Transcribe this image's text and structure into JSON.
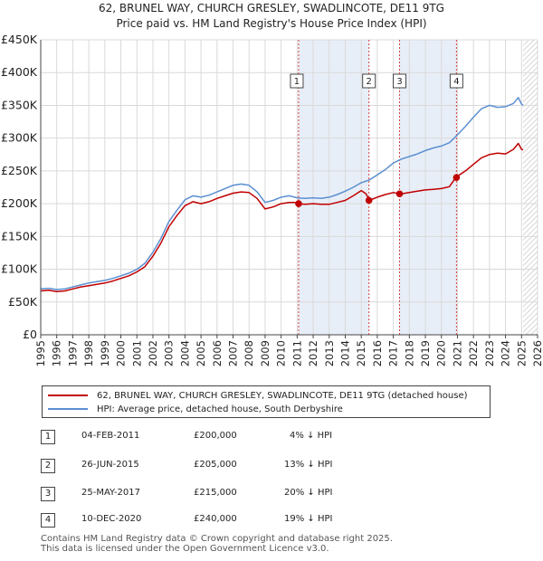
{
  "title_line1": "62, BRUNEL WAY, CHURCH GRESLEY, SWADLINCOTE, DE11 9TG",
  "title_line2": "Price paid vs. HM Land Registry's House Price Index (HPI)",
  "chart_data": {
    "type": "line",
    "x_range": [
      1995,
      2026
    ],
    "ylim": [
      0,
      450000
    ],
    "y_ticks": [
      {
        "value": 0,
        "label": "£0"
      },
      {
        "value": 50000,
        "label": "£50K"
      },
      {
        "value": 100000,
        "label": "£100K"
      },
      {
        "value": 150000,
        "label": "£150K"
      },
      {
        "value": 200000,
        "label": "£200K"
      },
      {
        "value": 250000,
        "label": "£250K"
      },
      {
        "value": 300000,
        "label": "£300K"
      },
      {
        "value": 350000,
        "label": "£350K"
      },
      {
        "value": 400000,
        "label": "£400K"
      },
      {
        "value": 450000,
        "label": "£450K"
      }
    ],
    "x_ticks": [
      "1995",
      "1996",
      "1997",
      "1998",
      "1999",
      "2000",
      "2001",
      "2002",
      "2003",
      "2004",
      "2005",
      "2006",
      "2007",
      "2008",
      "2009",
      "2010",
      "2011",
      "2012",
      "2013",
      "2014",
      "2015",
      "2016",
      "2017",
      "2018",
      "2019",
      "2020",
      "2021",
      "2022",
      "2023",
      "2024",
      "2025",
      "2026"
    ],
    "grid": true,
    "data_end": 2025.1,
    "series": [
      {
        "name": "62, BRUNEL WAY, CHURCH GRESLEY, SWADLINCOTE, DE11 9TG (detached house)",
        "color": "#c00000",
        "points": [
          [
            1995.0,
            67000
          ],
          [
            1995.5,
            68000
          ],
          [
            1996.0,
            66000
          ],
          [
            1996.5,
            67000
          ],
          [
            1997.0,
            70000
          ],
          [
            1997.5,
            73000
          ],
          [
            1998.0,
            75000
          ],
          [
            1998.5,
            77000
          ],
          [
            1999.0,
            79000
          ],
          [
            1999.5,
            82000
          ],
          [
            2000.0,
            86000
          ],
          [
            2000.5,
            90000
          ],
          [
            2001.0,
            96000
          ],
          [
            2001.5,
            104000
          ],
          [
            2002.0,
            120000
          ],
          [
            2002.5,
            140000
          ],
          [
            2003.0,
            165000
          ],
          [
            2003.5,
            182000
          ],
          [
            2004.0,
            197000
          ],
          [
            2004.5,
            203000
          ],
          [
            2005.0,
            200000
          ],
          [
            2005.5,
            203000
          ],
          [
            2006.0,
            208000
          ],
          [
            2006.5,
            212000
          ],
          [
            2007.0,
            216000
          ],
          [
            2007.5,
            218000
          ],
          [
            2008.0,
            217000
          ],
          [
            2008.5,
            208000
          ],
          [
            2009.0,
            192000
          ],
          [
            2009.5,
            195000
          ],
          [
            2010.0,
            200000
          ],
          [
            2010.5,
            202000
          ],
          [
            2011.0,
            202000
          ],
          [
            2011.1,
            200000
          ],
          [
            2011.5,
            199000
          ],
          [
            2012.0,
            200000
          ],
          [
            2012.5,
            199000
          ],
          [
            2013.0,
            199000
          ],
          [
            2013.5,
            202000
          ],
          [
            2014.0,
            205000
          ],
          [
            2014.5,
            212000
          ],
          [
            2015.0,
            220000
          ],
          [
            2015.3,
            215000
          ],
          [
            2015.5,
            205000
          ],
          [
            2016.0,
            210000
          ],
          [
            2016.5,
            214000
          ],
          [
            2017.0,
            217000
          ],
          [
            2017.4,
            215000
          ],
          [
            2017.5,
            215000
          ],
          [
            2018.0,
            217000
          ],
          [
            2018.5,
            219000
          ],
          [
            2019.0,
            221000
          ],
          [
            2019.5,
            222000
          ],
          [
            2020.0,
            223000
          ],
          [
            2020.5,
            226000
          ],
          [
            2020.9,
            240000
          ],
          [
            2021.0,
            242000
          ],
          [
            2021.5,
            250000
          ],
          [
            2022.0,
            260000
          ],
          [
            2022.5,
            270000
          ],
          [
            2023.0,
            275000
          ],
          [
            2023.5,
            277000
          ],
          [
            2024.0,
            276000
          ],
          [
            2024.5,
            283000
          ],
          [
            2024.8,
            292000
          ],
          [
            2025.0,
            283000
          ],
          [
            2025.1,
            282000
          ]
        ]
      },
      {
        "name": "HPI: Average price, detached house, South Derbyshire",
        "color": "#5b8fd1",
        "points": [
          [
            1995.0,
            70000
          ],
          [
            1995.5,
            71000
          ],
          [
            1996.0,
            69000
          ],
          [
            1996.5,
            70000
          ],
          [
            1997.0,
            73000
          ],
          [
            1997.5,
            76000
          ],
          [
            1998.0,
            79000
          ],
          [
            1998.5,
            81000
          ],
          [
            1999.0,
            83000
          ],
          [
            1999.5,
            86000
          ],
          [
            2000.0,
            90000
          ],
          [
            2000.5,
            94000
          ],
          [
            2001.0,
            100000
          ],
          [
            2001.5,
            109000
          ],
          [
            2002.0,
            126000
          ],
          [
            2002.5,
            147000
          ],
          [
            2003.0,
            173000
          ],
          [
            2003.5,
            190000
          ],
          [
            2004.0,
            206000
          ],
          [
            2004.5,
            212000
          ],
          [
            2005.0,
            210000
          ],
          [
            2005.5,
            213000
          ],
          [
            2006.0,
            218000
          ],
          [
            2006.5,
            223000
          ],
          [
            2007.0,
            228000
          ],
          [
            2007.5,
            230000
          ],
          [
            2008.0,
            228000
          ],
          [
            2008.5,
            218000
          ],
          [
            2009.0,
            202000
          ],
          [
            2009.5,
            205000
          ],
          [
            2010.0,
            210000
          ],
          [
            2010.5,
            212000
          ],
          [
            2011.0,
            209000
          ],
          [
            2011.5,
            208000
          ],
          [
            2012.0,
            209000
          ],
          [
            2012.5,
            208000
          ],
          [
            2013.0,
            210000
          ],
          [
            2013.5,
            214000
          ],
          [
            2014.0,
            219000
          ],
          [
            2014.5,
            225000
          ],
          [
            2015.0,
            232000
          ],
          [
            2015.5,
            236000
          ],
          [
            2016.0,
            244000
          ],
          [
            2016.5,
            252000
          ],
          [
            2017.0,
            262000
          ],
          [
            2017.5,
            268000
          ],
          [
            2018.0,
            272000
          ],
          [
            2018.5,
            276000
          ],
          [
            2019.0,
            281000
          ],
          [
            2019.5,
            285000
          ],
          [
            2020.0,
            288000
          ],
          [
            2020.5,
            293000
          ],
          [
            2021.0,
            305000
          ],
          [
            2021.5,
            318000
          ],
          [
            2022.0,
            332000
          ],
          [
            2022.5,
            345000
          ],
          [
            2023.0,
            350000
          ],
          [
            2023.5,
            347000
          ],
          [
            2024.0,
            348000
          ],
          [
            2024.5,
            353000
          ],
          [
            2024.8,
            362000
          ],
          [
            2025.0,
            352000
          ],
          [
            2025.1,
            350000
          ]
        ]
      }
    ],
    "sales": [
      {
        "label": "1",
        "x": 2011.09,
        "price": 200000
      },
      {
        "label": "2",
        "x": 2015.48,
        "price": 205000
      },
      {
        "label": "3",
        "x": 2017.39,
        "price": 215000
      },
      {
        "label": "4",
        "x": 2020.94,
        "price": 240000
      }
    ]
  },
  "legend": {
    "property": "62, BRUNEL WAY, CHURCH GRESLEY, SWADLINCOTE, DE11 9TG (detached house)",
    "hpi": "HPI: Average price, detached house, South Derbyshire"
  },
  "transactions": [
    {
      "num": "1",
      "date": "04-FEB-2011",
      "price": "£200,000",
      "hpi": "4% ↓ HPI"
    },
    {
      "num": "2",
      "date": "26-JUN-2015",
      "price": "£205,000",
      "hpi": "13% ↓ HPI"
    },
    {
      "num": "3",
      "date": "25-MAY-2017",
      "price": "£215,000",
      "hpi": "20% ↓ HPI"
    },
    {
      "num": "4",
      "date": "10-DEC-2020",
      "price": "£240,000",
      "hpi": "19% ↓ HPI"
    }
  ],
  "footer": {
    "line1": "Contains HM Land Registry data © Crown copyright and database right 2025.",
    "line2": "This data is licensed under the Open Government Licence v3.0."
  },
  "colors": {
    "property": "#c00000",
    "hpi": "#5b8fd1",
    "shade": "#e8eef8",
    "grid": "#d9d9d9"
  }
}
